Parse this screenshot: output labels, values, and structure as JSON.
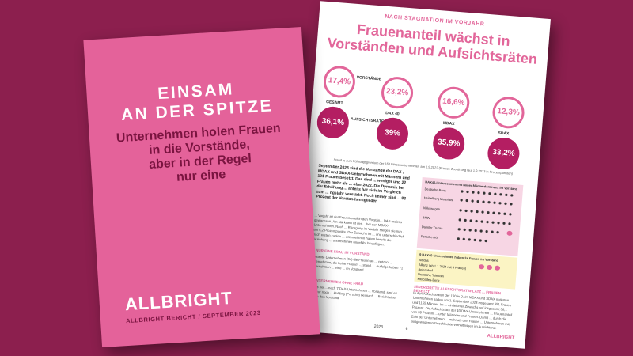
{
  "cover": {
    "title_line1": "EINSAM",
    "title_line2": "AN DER SPITZE",
    "subtitle_line1": "Unternehmen holen Frauen",
    "subtitle_line2": "in die Vorstände,",
    "subtitle_line3": "aber in der Regel",
    "subtitle_line4": "nur eine",
    "logo_part1": "ALL",
    "logo_part2": "BRIGHT",
    "meta": "ALLBRIGHT BERICHT / SEPTEMBER 2023"
  },
  "report": {
    "kicker": "NACH STAGNATION IM VORJAHR",
    "title_line1": "Frauenanteil wächst in",
    "title_line2": "Vorständen und Aufsichtsräten",
    "row_labels": {
      "vorstaende": "VORSTÄNDE",
      "aufsichtsraete": "AUFSICHTSRÄTE"
    },
    "group_labels": [
      "GESAMT",
      "DAX 40",
      "MDAX",
      "SDAX"
    ],
    "vorstaende": [
      "17,4%",
      "23,2%",
      "16,6%",
      "12,3%"
    ],
    "aufsichtsraete": [
      "36,1%",
      "39%",
      "35,9%",
      "33,2%"
    ],
    "caption": "Stand je zum Führungsgremium der 160 Börsenunternehmen am 1.9.2023 (Frauen-Zuordnung laut 1.9.2023 in Prozentpunkten)",
    "lead": "September 2023 sind die Vorstände der DAX-, MDAX und SDAX-Unternehmen mit Männern und 101 Frauen besetzt. Das sind ... weniger und 22 Frauen mehr als ... ober 2022. Die Dynamik bei der Erhöhung ... anteils hat sich im Vergleich zum ... ngsjahr verstärkt. Noch immer sind ... 83 Prozent der Vorstandsmitglieder",
    "body_text_1": "... Vorjahr ist der Frauenanteil in den Vorstän... DAX-Indizes gewachsen. Am stärksten ist der ... bei den MDAX-Unternehmen. Nach ... Rückgang im Vorjahr steigen sie nun ... um 5,2 Prozentpunkte. Der Zuwachs ist ... und unterschiedlich nach ersten zahlen ... unternehmen haben bereits die Beziehung ... unternehmen ungefähr hinzufügen.",
    "subheading_1": "... NUR EINE FRAU IM VORSTAND",
    "body_text_2": "... rstellte Unternehmen (94) die Frauen an ... nutzen ... Unternehmen, die keine Frau im ... stand. ... Auffolge haben 71 Unternehmen ... eine ... im Vorstand",
    "subheading_2": "... UNTERNEHMEN OHNE FRAU",
    "body_text_3": "... was bei ... nach 7 DAX-Unternehmen ... Vorstand, sind es aber nur noch ... Holding (Porsche) bei nach ... Bericht eine Frau in den Vorstand",
    "panel_heading": "DAX40-Unternehmen mit reiner Männerdominanz im Vorstand",
    "panel_rows": [
      "Deutsche Bank",
      "Heidelberg Materials",
      "Volkswagen",
      "BMW",
      "Daimler Trucks",
      "Porsche AG"
    ],
    "panel2_heading": "9 DAX40-Unternehmen haben 3+ Frauen im Vorstand",
    "panel2_rows": [
      "Adidas",
      "Allianz (ab 1.1.2024 mit 4 Frauen)",
      "Beiersdorf",
      "Deutsche Telekom",
      "Mercedes-Benz"
    ],
    "subheading_3": "JEDER DRITTE AUFSICHTSRATSPLATZ ... FRAUEN BESETZT",
    "body_text_4": "In den Aufsichtsräten der 160 in DAX, MDAX und SDAX notierten Unternehmen saßen am 1. September 2023 insgesamt 651 Frauen und 1155 Männer. Im ... ein leichter Zuwachs auf insgesamt 36,1 Prozent. Die Aufsichtsräte der 40 DAX-Unternehmen ... Frauenanteil von 39 Prozent ... unter Männern und Frauen. Damit ... durch die Zahl der Unternehmen ... mehr als drei Frauen ... Unternehmen mit ausgewogenen Geschlechterverhältnissen im Aufsichtsrat.",
    "page_left": "2023",
    "page_num": "6",
    "footer_logo": "ALLBRIGHT"
  },
  "colors": {
    "background": "#8c1f4e",
    "cover": "#e4629a",
    "accent": "#e2669a",
    "dark_accent": "#b41e62"
  }
}
